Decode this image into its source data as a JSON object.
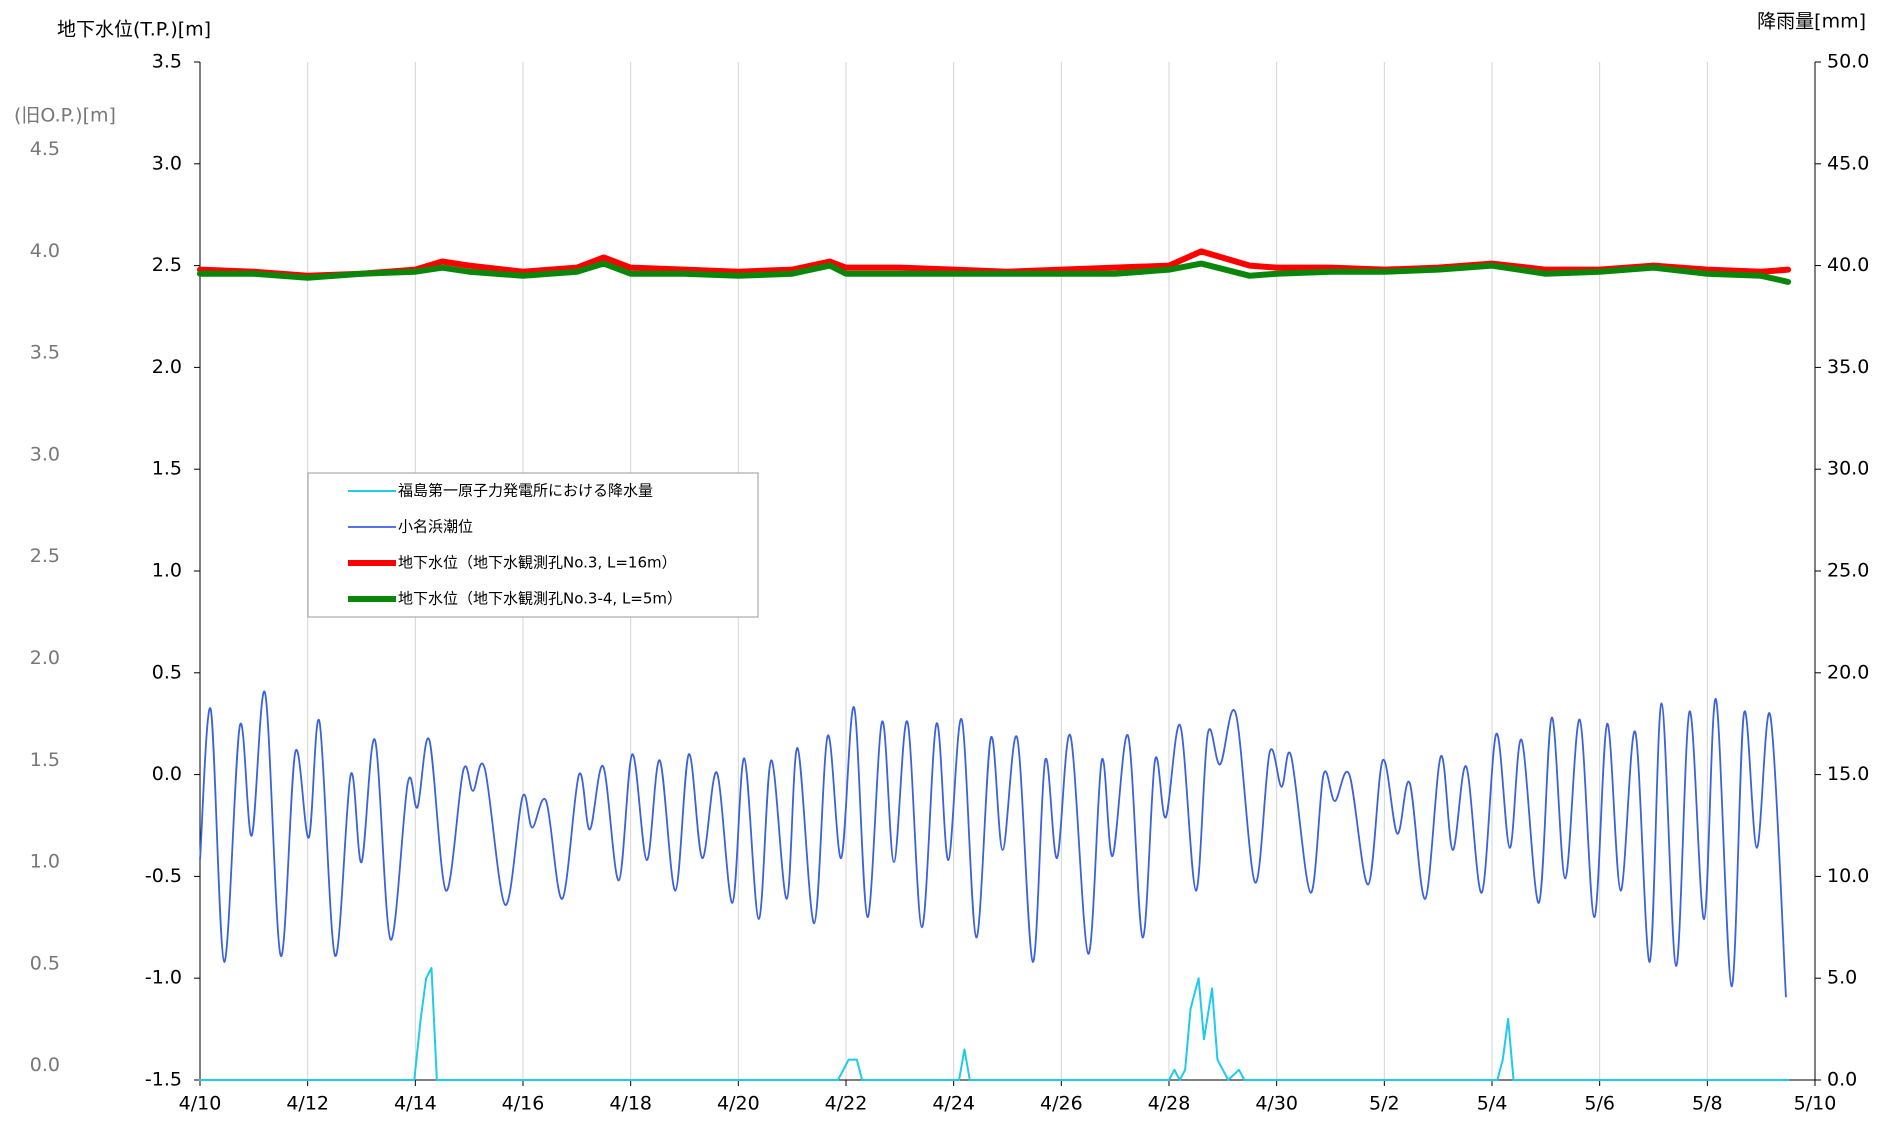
{
  "chart_data": {
    "type": "line",
    "y_axis_label": "地下水位(T.P.)[m]",
    "y3_axis_label": "(旧O.P.)[m]",
    "y2_axis_label": "降雨量[mm]",
    "xlim": [
      0,
      30
    ],
    "xticks": [
      {
        "value": 0,
        "label": "4/10"
      },
      {
        "value": 2,
        "label": "4/12"
      },
      {
        "value": 4,
        "label": "4/14"
      },
      {
        "value": 6,
        "label": "4/16"
      },
      {
        "value": 8,
        "label": "4/18"
      },
      {
        "value": 10,
        "label": "4/20"
      },
      {
        "value": 12,
        "label": "4/22"
      },
      {
        "value": 14,
        "label": "4/24"
      },
      {
        "value": 16,
        "label": "4/26"
      },
      {
        "value": 18,
        "label": "4/28"
      },
      {
        "value": 20,
        "label": "4/30"
      },
      {
        "value": 22,
        "label": "5/2"
      },
      {
        "value": 24,
        "label": "5/4"
      },
      {
        "value": 26,
        "label": "5/6"
      },
      {
        "value": 28,
        "label": "5/8"
      },
      {
        "value": 30,
        "label": "5/10"
      }
    ],
    "ylim": [
      -1.5,
      3.5
    ],
    "yticks": [
      -1.5,
      {
        "value": -1,
        "label": "-1.0"
      },
      -0.5,
      {
        "value": 0,
        "label": "0.0"
      },
      0.5,
      {
        "value": 1,
        "label": "1.0"
      },
      1.5,
      {
        "value": 2,
        "label": "2.0"
      },
      2.5,
      {
        "value": 3,
        "label": "3.0"
      },
      3.5
    ],
    "y2lim": [
      0,
      50
    ],
    "y2ticks": [
      {
        "value": 0,
        "label": "0.0"
      },
      {
        "value": 5,
        "label": "5.0"
      },
      {
        "value": 10,
        "label": "10.0"
      },
      {
        "value": 15,
        "label": "15.0"
      },
      {
        "value": 20,
        "label": "20.0"
      },
      {
        "value": 25,
        "label": "25.0"
      },
      {
        "value": 30,
        "label": "30.0"
      },
      {
        "value": 35,
        "label": "35.0"
      },
      {
        "value": 40,
        "label": "40.0"
      },
      {
        "value": 45,
        "label": "45.0"
      },
      {
        "value": 50,
        "label": "50.0"
      }
    ],
    "y3lim": [
      -0.07,
      4.93
    ],
    "y3ticks": [
      {
        "value": 0,
        "label": "0.0"
      },
      0.5,
      {
        "value": 1,
        "label": "1.0"
      },
      1.5,
      {
        "value": 2,
        "label": "2.0"
      },
      2.5,
      {
        "value": 3,
        "label": "3.0"
      },
      3.5,
      {
        "value": 4,
        "label": "4.0"
      },
      4.5
    ],
    "grid": true,
    "series": [
      {
        "name": "福島第一原子力発電所における降水量",
        "color": "#1ecbea",
        "axis": "y2",
        "x": [
          0,
          3.98,
          4.1,
          4.2,
          4.3,
          4.4,
          11.85,
          11.95,
          12.05,
          12.2,
          12.3,
          14.1,
          14.2,
          14.3,
          18.0,
          18.1,
          18.2,
          18.3,
          18.4,
          18.55,
          18.65,
          18.8,
          18.9,
          19.0,
          19.1,
          19.3,
          19.4,
          24.1,
          24.2,
          24.3,
          24.4,
          29.5
        ],
        "values": [
          0,
          0,
          3.0,
          5.0,
          5.5,
          0,
          0,
          0.5,
          1.0,
          1.0,
          0,
          0,
          1.5,
          0,
          0,
          0.5,
          0,
          0.5,
          3.5,
          5.0,
          2.0,
          4.5,
          1.0,
          0.5,
          0,
          0.5,
          0,
          0,
          1.0,
          3.0,
          0,
          0
        ]
      },
      {
        "name": "小名浜潮位",
        "color": "#3a62e0",
        "x": [
          0,
          0.2,
          0.45,
          0.74,
          0.96,
          1.21,
          1.5,
          1.77,
          2.02,
          2.22,
          2.51,
          2.8,
          3.0,
          3.25,
          3.54,
          3.86,
          4.04,
          4.26,
          4.57,
          4.89,
          5.07,
          5.29,
          5.67,
          5.99,
          6.17,
          6.43,
          6.73,
          7.04,
          7.24,
          7.49,
          7.78,
          8.03,
          8.3,
          8.54,
          8.83,
          9.08,
          9.33,
          9.6,
          9.89,
          10.11,
          10.38,
          10.61,
          10.9,
          11.1,
          11.41,
          11.66,
          11.91,
          12.15,
          12.4,
          12.67,
          12.89,
          13.14,
          13.41,
          13.68,
          13.9,
          14.15,
          14.42,
          14.69,
          14.91,
          15.18,
          15.47,
          15.7,
          15.92,
          16.17,
          16.5,
          16.75,
          16.95,
          17.24,
          17.51,
          17.74,
          17.94,
          18.21,
          18.5,
          18.72,
          18.95,
          19.24,
          19.6,
          19.87,
          20.09,
          20.27,
          20.63,
          20.87,
          21.08,
          21.35,
          21.7,
          21.97,
          22.24,
          22.47,
          22.76,
          23.05,
          23.27,
          23.52,
          23.81,
          24.08,
          24.33,
          24.55,
          24.87,
          25.11,
          25.36,
          25.63,
          25.9,
          26.14,
          26.39,
          26.66,
          26.93,
          27.15,
          27.42,
          27.67,
          27.94,
          28.16,
          28.45,
          28.68,
          28.92,
          29.17,
          29.46
        ],
        "values": [
          -0.42,
          0.32,
          -0.92,
          0.24,
          -0.3,
          0.4,
          -0.89,
          0.11,
          -0.31,
          0.26,
          -0.89,
          0.0,
          -0.43,
          0.17,
          -0.81,
          -0.04,
          -0.16,
          0.17,
          -0.57,
          0.02,
          -0.08,
          0.03,
          -0.64,
          -0.11,
          -0.26,
          -0.13,
          -0.61,
          0.0,
          -0.27,
          0.04,
          -0.52,
          0.1,
          -0.42,
          0.07,
          -0.57,
          0.1,
          -0.41,
          0.01,
          -0.63,
          0.08,
          -0.71,
          0.07,
          -0.61,
          0.13,
          -0.73,
          0.19,
          -0.41,
          0.33,
          -0.7,
          0.26,
          -0.43,
          0.26,
          -0.75,
          0.25,
          -0.42,
          0.27,
          -0.8,
          0.18,
          -0.37,
          0.18,
          -0.92,
          0.07,
          -0.41,
          0.19,
          -0.88,
          0.07,
          -0.4,
          0.19,
          -0.8,
          0.07,
          -0.21,
          0.24,
          -0.57,
          0.2,
          0.05,
          0.3,
          -0.53,
          0.11,
          -0.06,
          0.09,
          -0.58,
          0.0,
          -0.13,
          0.0,
          -0.54,
          0.07,
          -0.29,
          -0.04,
          -0.61,
          0.09,
          -0.37,
          0.04,
          -0.58,
          0.2,
          -0.36,
          0.17,
          -0.63,
          0.28,
          -0.51,
          0.27,
          -0.7,
          0.25,
          -0.57,
          0.21,
          -0.92,
          0.35,
          -0.94,
          0.31,
          -0.71,
          0.37,
          -1.04,
          0.3,
          -0.36,
          0.29,
          -1.09
        ]
      },
      {
        "name": "地下水位（地下水観測孔No.3, L=16m）",
        "color": "#ff0000",
        "x": [
          0,
          1,
          2,
          3,
          4,
          4.5,
          5,
          6,
          7,
          7.5,
          8,
          9,
          10,
          11,
          11.7,
          12,
          13,
          14,
          15,
          16,
          17,
          18,
          18.6,
          19.5,
          20,
          21,
          22,
          23,
          24,
          25,
          26,
          27,
          28,
          29,
          29.5
        ],
        "values": [
          2.48,
          2.47,
          2.45,
          2.46,
          2.48,
          2.52,
          2.5,
          2.47,
          2.49,
          2.54,
          2.49,
          2.48,
          2.47,
          2.48,
          2.52,
          2.49,
          2.49,
          2.48,
          2.47,
          2.48,
          2.49,
          2.5,
          2.57,
          2.5,
          2.49,
          2.49,
          2.48,
          2.49,
          2.51,
          2.48,
          2.48,
          2.5,
          2.48,
          2.47,
          2.48
        ]
      },
      {
        "name": "地下水位（地下水観測孔No.3-4, L=5m）",
        "color": "#0a870a",
        "x": [
          0,
          1,
          2,
          3,
          4,
          4.5,
          5,
          6,
          7,
          7.5,
          8,
          9,
          10,
          11,
          11.7,
          12,
          13,
          14,
          15,
          16,
          17,
          18,
          18.6,
          19.5,
          20,
          21,
          22,
          23,
          24,
          25,
          26,
          27,
          28,
          29,
          29.5
        ],
        "values": [
          2.46,
          2.46,
          2.44,
          2.46,
          2.47,
          2.49,
          2.47,
          2.45,
          2.47,
          2.51,
          2.46,
          2.46,
          2.45,
          2.46,
          2.5,
          2.46,
          2.46,
          2.46,
          2.46,
          2.46,
          2.46,
          2.48,
          2.51,
          2.45,
          2.46,
          2.47,
          2.47,
          2.48,
          2.5,
          2.46,
          2.47,
          2.49,
          2.46,
          2.45,
          2.42
        ]
      }
    ]
  }
}
